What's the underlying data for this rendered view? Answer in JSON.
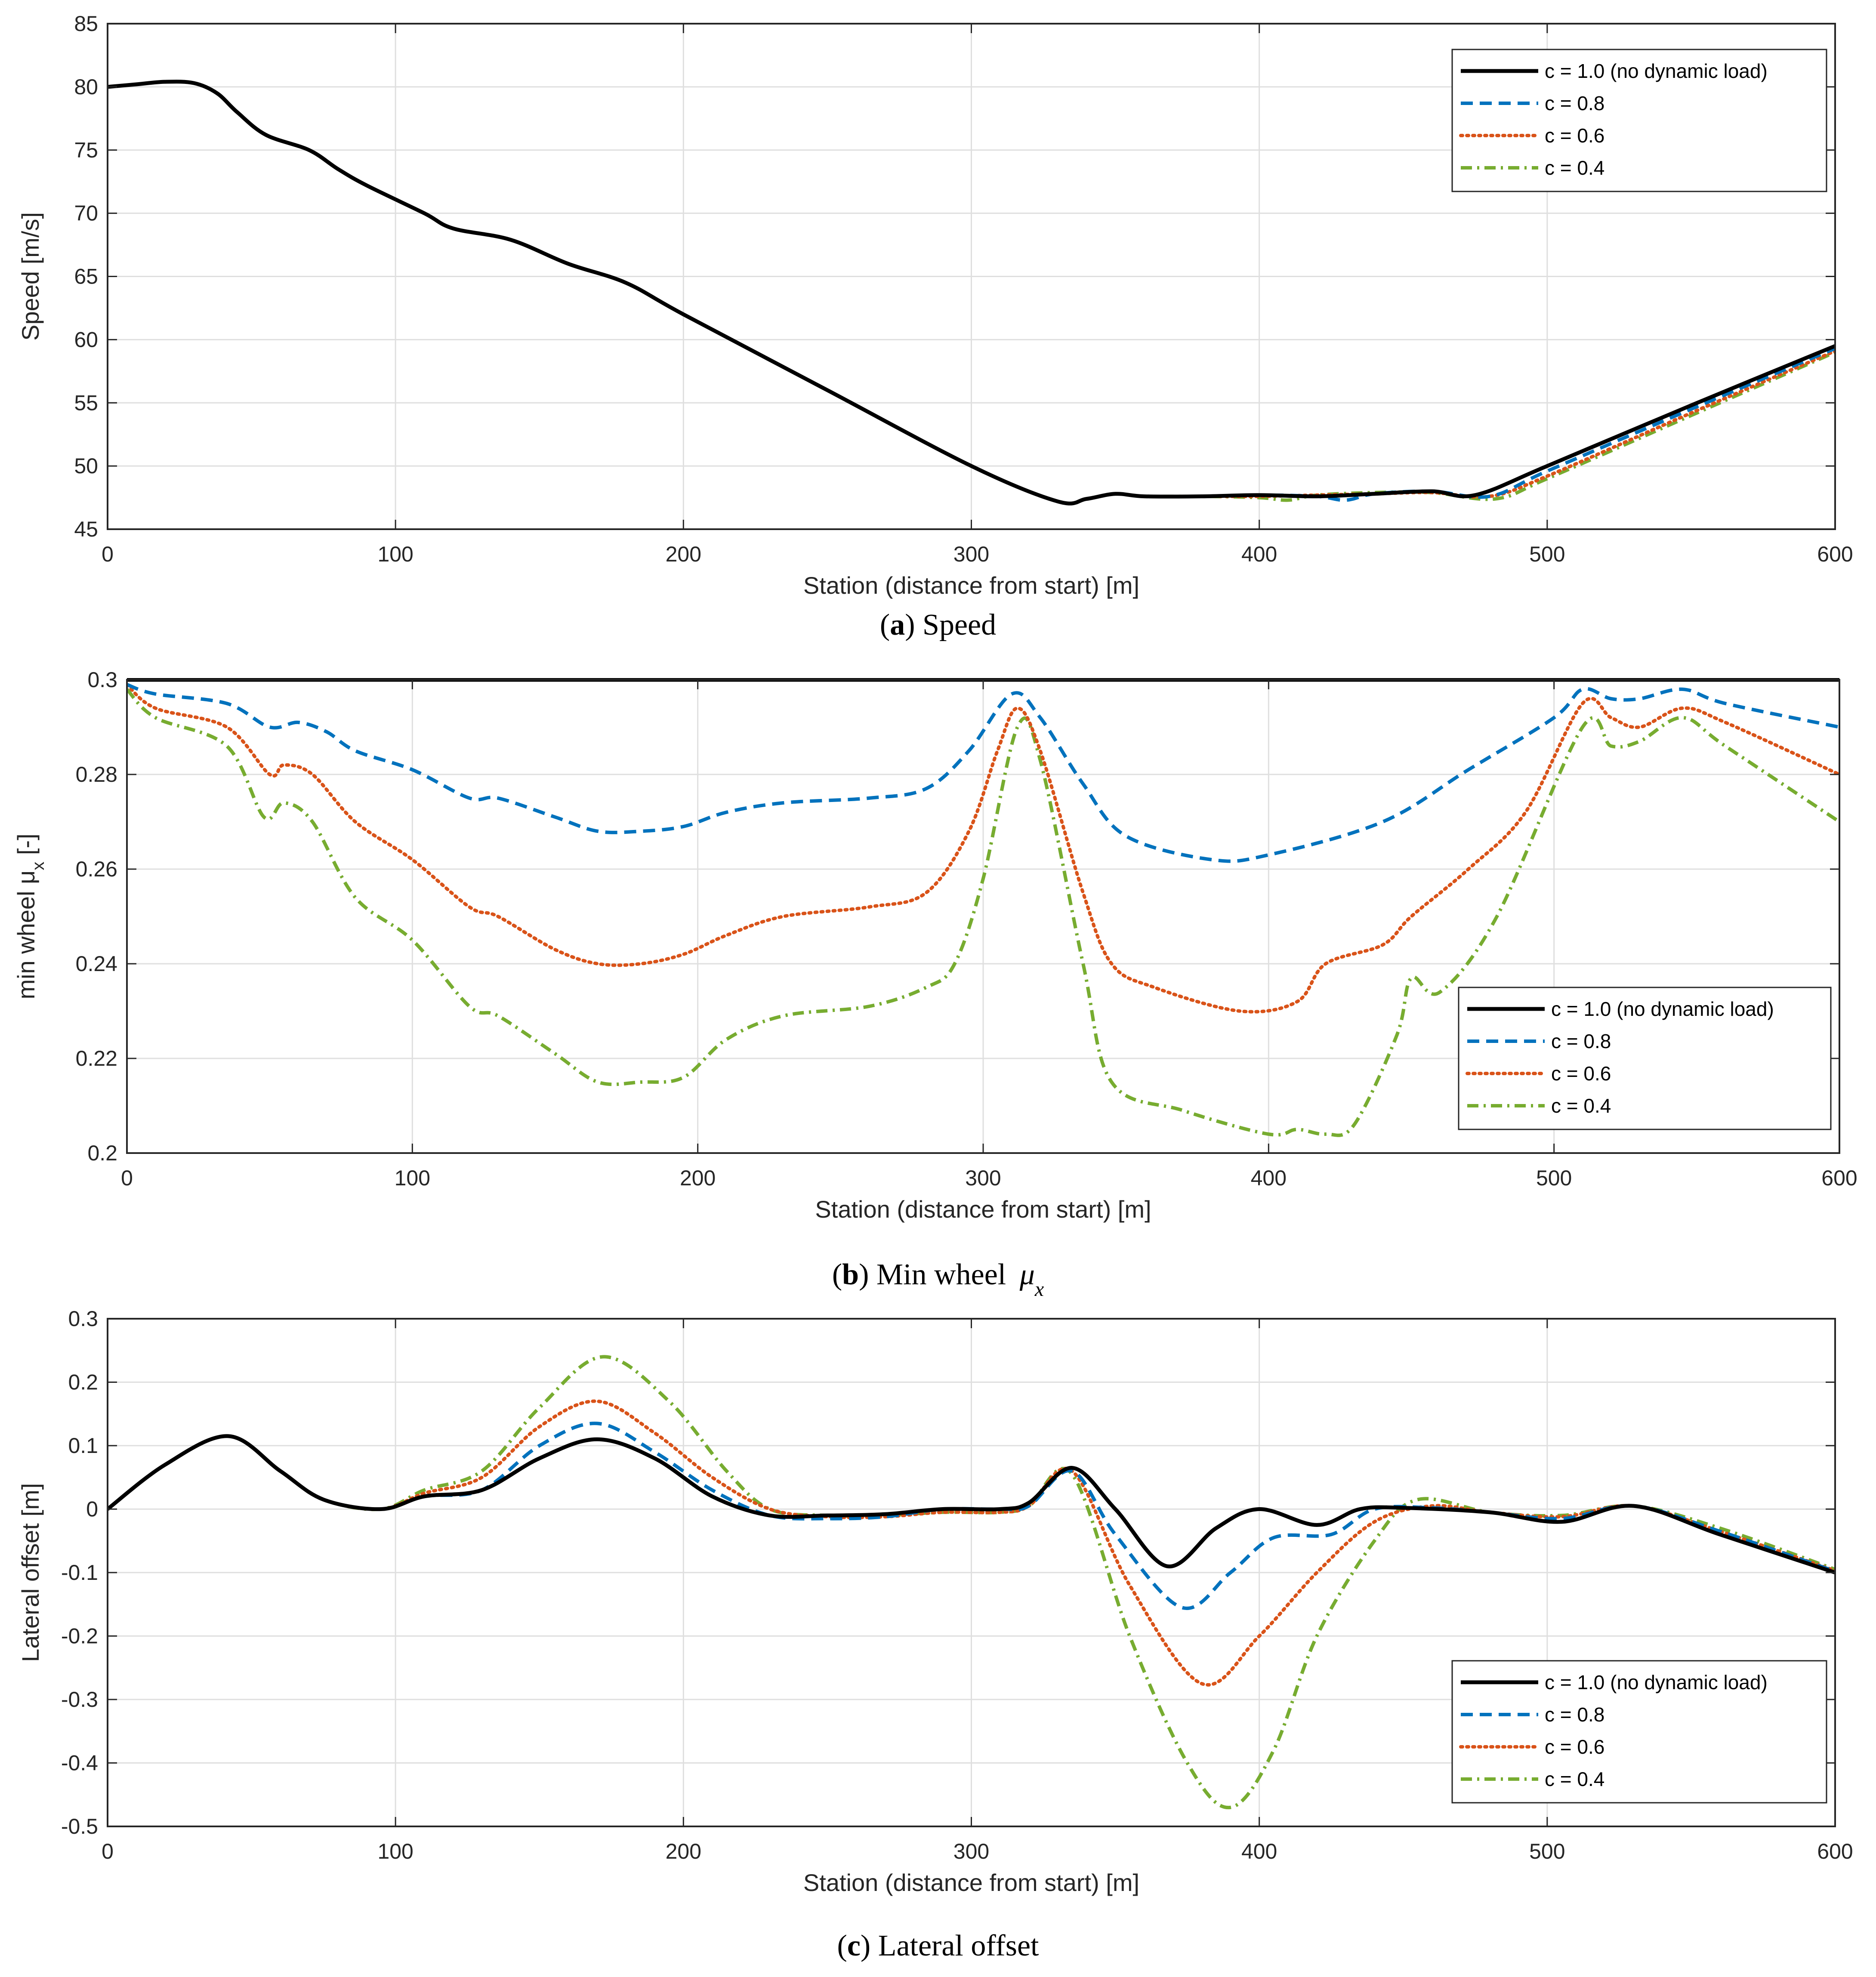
{
  "colors": {
    "c10": "#000000",
    "c08": "#0072BD",
    "c06": "#D95319",
    "c04": "#77AC30",
    "grid": "#DFDFDF",
    "axis": "#262626"
  },
  "legend_labels": [
    "c = 1.0 (no dynamic load)",
    "c = 0.8",
    "c = 0.6",
    "c = 0.4"
  ],
  "chart_data": [
    {
      "type": "line",
      "id": "a",
      "caption_letter": "a",
      "caption_text": " Speed",
      "xlabel": "Station (distance from start) [m]",
      "ylabel": "Speed [m/s]",
      "xlim": [
        0,
        600
      ],
      "ylim": [
        45,
        85
      ],
      "xticks": [
        0,
        100,
        200,
        300,
        400,
        500,
        600
      ],
      "yticks": [
        45,
        50,
        55,
        60,
        65,
        70,
        75,
        80,
        85
      ],
      "ytick_labels": [
        "45",
        "50",
        "55",
        "60",
        "65",
        "70",
        "75",
        "80",
        "85"
      ],
      "grid": true,
      "legend_position": "top-right",
      "series": [
        {
          "name": "c = 1.0 (no dynamic load)",
          "style": "solid",
          "x": [
            0,
            10,
            20,
            30,
            38,
            45,
            55,
            70,
            80,
            90,
            110,
            120,
            140,
            160,
            180,
            200,
            250,
            300,
            330,
            340,
            350,
            360,
            380,
            400,
            420,
            440,
            460,
            475,
            500,
            550,
            600
          ],
          "y": [
            80,
            80.2,
            80.4,
            80.3,
            79.5,
            78,
            76.2,
            75,
            73.5,
            72.2,
            70,
            68.8,
            67.9,
            66,
            64.5,
            62,
            56,
            50,
            47.2,
            47.4,
            47.8,
            47.6,
            47.6,
            47.7,
            47.6,
            47.8,
            48,
            47.7,
            50,
            54.8,
            59.5
          ]
        },
        {
          "name": "c = 0.8",
          "style": "dashed",
          "x": [
            0,
            10,
            20,
            30,
            38,
            45,
            55,
            70,
            80,
            90,
            110,
            120,
            140,
            160,
            180,
            200,
            250,
            300,
            330,
            340,
            350,
            360,
            380,
            400,
            420,
            430,
            440,
            460,
            480,
            500,
            550,
            600
          ],
          "y": [
            80,
            80.2,
            80.4,
            80.3,
            79.5,
            78,
            76.2,
            75,
            73.5,
            72.2,
            70,
            68.8,
            67.9,
            66,
            64.5,
            62,
            56,
            50,
            47.2,
            47.4,
            47.8,
            47.6,
            47.6,
            47.7,
            47.6,
            47.3,
            47.8,
            48,
            47.6,
            49.6,
            54.5,
            59.3
          ]
        },
        {
          "name": "c = 0.6",
          "style": "dotted",
          "x": [
            0,
            10,
            20,
            30,
            38,
            45,
            55,
            70,
            80,
            90,
            110,
            120,
            140,
            160,
            180,
            200,
            250,
            300,
            330,
            340,
            350,
            360,
            380,
            400,
            420,
            440,
            460,
            480,
            500,
            550,
            600
          ],
          "y": [
            80,
            80.2,
            80.4,
            80.3,
            79.5,
            78,
            76.2,
            75,
            73.5,
            72.2,
            70,
            68.8,
            67.9,
            66,
            64.5,
            62,
            56,
            50,
            47.2,
            47.4,
            47.8,
            47.6,
            47.6,
            47.6,
            47.7,
            47.8,
            47.9,
            47.6,
            49.2,
            54.2,
            59.1
          ]
        },
        {
          "name": "c = 0.4",
          "style": "dashdot",
          "x": [
            0,
            10,
            20,
            30,
            38,
            45,
            55,
            70,
            80,
            90,
            110,
            120,
            140,
            160,
            180,
            200,
            250,
            300,
            330,
            340,
            350,
            360,
            380,
            400,
            410,
            420,
            440,
            460,
            482,
            500,
            550,
            600
          ],
          "y": [
            80,
            80.2,
            80.4,
            80.3,
            79.5,
            78,
            76.2,
            75,
            73.5,
            72.2,
            70,
            68.8,
            67.9,
            66,
            64.5,
            62,
            56,
            50,
            47.2,
            47.4,
            47.8,
            47.6,
            47.6,
            47.5,
            47.3,
            47.7,
            47.9,
            47.9,
            47.4,
            49,
            54,
            59
          ]
        }
      ]
    },
    {
      "type": "line",
      "id": "b",
      "caption_letter": "b",
      "caption_text": ") Min wheel ",
      "caption_symbol": "μ",
      "caption_subscript": "x",
      "xlabel": "Station (distance from start) [m]",
      "ylabel": "min wheel μ",
      "ylabel_sub": "x",
      "ylabel_suffix": " [-]",
      "xlim": [
        0,
        600
      ],
      "ylim": [
        0.2,
        0.3
      ],
      "xticks": [
        0,
        100,
        200,
        300,
        400,
        500,
        600
      ],
      "yticks": [
        0.2,
        0.22,
        0.24,
        0.26,
        0.28,
        0.3
      ],
      "ytick_labels": [
        "0.2",
        "0.22",
        "0.24",
        "0.26",
        "0.28",
        "0.3"
      ],
      "grid": true,
      "legend_position": "lower-right",
      "series": [
        {
          "name": "c = 1.0 (no dynamic load)",
          "style": "solid",
          "x": [
            0,
            600
          ],
          "y": [
            0.3,
            0.3
          ]
        },
        {
          "name": "c = 0.8",
          "style": "dashed",
          "x": [
            0,
            10,
            35,
            50,
            60,
            70,
            80,
            100,
            120,
            130,
            150,
            165,
            180,
            195,
            210,
            230,
            260,
            280,
            295,
            310,
            320,
            335,
            350,
            380,
            400,
            440,
            470,
            500,
            510,
            520,
            530,
            545,
            560,
            600
          ],
          "y": [
            0.299,
            0.297,
            0.295,
            0.29,
            0.291,
            0.289,
            0.285,
            0.281,
            0.275,
            0.275,
            0.271,
            0.268,
            0.268,
            0.269,
            0.272,
            0.274,
            0.275,
            0.277,
            0.285,
            0.297,
            0.292,
            0.278,
            0.267,
            0.262,
            0.263,
            0.27,
            0.281,
            0.292,
            0.298,
            0.296,
            0.296,
            0.298,
            0.295,
            0.29
          ]
        },
        {
          "name": "c = 0.6",
          "style": "dotted",
          "x": [
            0,
            10,
            35,
            50,
            55,
            65,
            80,
            100,
            120,
            130,
            150,
            165,
            180,
            195,
            210,
            230,
            260,
            280,
            295,
            305,
            312,
            320,
            335,
            345,
            360,
            390,
            410,
            420,
            440,
            450,
            470,
            490,
            510,
            520,
            530,
            545,
            560,
            600
          ],
          "y": [
            0.299,
            0.294,
            0.29,
            0.28,
            0.282,
            0.28,
            0.27,
            0.262,
            0.252,
            0.25,
            0.243,
            0.24,
            0.24,
            0.242,
            0.246,
            0.25,
            0.252,
            0.255,
            0.268,
            0.285,
            0.294,
            0.285,
            0.255,
            0.24,
            0.235,
            0.23,
            0.232,
            0.24,
            0.244,
            0.25,
            0.26,
            0.272,
            0.295,
            0.292,
            0.29,
            0.294,
            0.291,
            0.28
          ]
        },
        {
          "name": "c = 0.4",
          "style": "dashdot",
          "x": [
            0,
            10,
            35,
            48,
            55,
            65,
            80,
            100,
            120,
            130,
            150,
            165,
            180,
            195,
            210,
            230,
            260,
            280,
            290,
            300,
            312,
            320,
            335,
            345,
            370,
            400,
            410,
            420,
            430,
            445,
            450,
            460,
            480,
            510,
            520,
            530,
            545,
            560,
            600
          ],
          "y": [
            0.298,
            0.292,
            0.286,
            0.271,
            0.274,
            0.27,
            0.254,
            0.245,
            0.231,
            0.229,
            0.221,
            0.215,
            0.215,
            0.216,
            0.224,
            0.229,
            0.231,
            0.235,
            0.24,
            0.258,
            0.29,
            0.283,
            0.24,
            0.215,
            0.209,
            0.204,
            0.205,
            0.204,
            0.206,
            0.225,
            0.237,
            0.234,
            0.25,
            0.29,
            0.286,
            0.287,
            0.292,
            0.286,
            0.27
          ]
        }
      ]
    },
    {
      "type": "line",
      "id": "c",
      "caption_letter": "c",
      "caption_text": ") Lateral offset",
      "xlabel": "Station (distance from start) [m]",
      "ylabel": "Lateral offset [m]",
      "xlim": [
        0,
        600
      ],
      "ylim": [
        -0.5,
        0.3
      ],
      "xticks": [
        0,
        100,
        200,
        300,
        400,
        500,
        600
      ],
      "yticks": [
        -0.5,
        -0.4,
        -0.3,
        -0.2,
        -0.1,
        0,
        0.1,
        0.2,
        0.3
      ],
      "ytick_labels": [
        "-0.5",
        "-0.4",
        "-0.3",
        "-0.2",
        "-0.1",
        "0",
        "0.1",
        "0.2",
        "0.3"
      ],
      "grid": true,
      "legend_position": "lower-right",
      "series": [
        {
          "name": "c = 1.0 (no dynamic load)",
          "style": "solid",
          "x": [
            0,
            20,
            42,
            60,
            75,
            95,
            110,
            130,
            150,
            170,
            190,
            210,
            230,
            250,
            270,
            290,
            310,
            320,
            335,
            350,
            368,
            385,
            400,
            420,
            435,
            450,
            480,
            505,
            530,
            560,
            600
          ],
          "y": [
            0,
            0.07,
            0.115,
            0.06,
            0.015,
            0,
            0.02,
            0.03,
            0.08,
            0.11,
            0.08,
            0.02,
            -0.01,
            -0.01,
            -0.008,
            0,
            0,
            0.01,
            0.065,
            0,
            -0.09,
            -0.03,
            0,
            -0.025,
            0,
            0.002,
            -0.005,
            -0.02,
            0.005,
            -0.04,
            -0.1
          ]
        },
        {
          "name": "c = 0.8",
          "style": "dashed",
          "x": [
            0,
            20,
            42,
            60,
            75,
            95,
            110,
            130,
            150,
            170,
            190,
            210,
            230,
            250,
            270,
            290,
            310,
            320,
            335,
            350,
            373,
            390,
            405,
            425,
            440,
            460,
            480,
            505,
            530,
            560,
            600
          ],
          "y": [
            0,
            0.07,
            0.115,
            0.06,
            0.015,
            0,
            0.02,
            0.03,
            0.1,
            0.135,
            0.09,
            0.03,
            -0.01,
            -0.015,
            -0.012,
            0,
            0,
            0.005,
            0.06,
            -0.04,
            -0.155,
            -0.1,
            -0.045,
            -0.04,
            0,
            0.002,
            -0.005,
            -0.015,
            0.005,
            -0.035,
            -0.098
          ]
        },
        {
          "name": "c = 0.6",
          "style": "dotted",
          "x": [
            0,
            20,
            42,
            60,
            75,
            95,
            110,
            130,
            150,
            170,
            190,
            210,
            230,
            250,
            270,
            290,
            310,
            320,
            335,
            355,
            380,
            400,
            420,
            440,
            460,
            480,
            505,
            530,
            560,
            600
          ],
          "y": [
            0,
            0.07,
            0.115,
            0.06,
            0.015,
            0,
            0.025,
            0.05,
            0.13,
            0.17,
            0.12,
            0.05,
            0,
            -0.012,
            -0.012,
            -0.005,
            -0.005,
            0.005,
            0.06,
            -0.12,
            -0.275,
            -0.2,
            -0.1,
            -0.02,
            0.005,
            -0.005,
            -0.012,
            0.005,
            -0.035,
            -0.097
          ]
        },
        {
          "name": "c = 0.4",
          "style": "dashdot",
          "x": [
            0,
            20,
            42,
            60,
            75,
            95,
            110,
            130,
            150,
            172,
            195,
            215,
            230,
            250,
            270,
            290,
            310,
            320,
            335,
            355,
            375,
            390,
            405,
            420,
            440,
            455,
            480,
            505,
            530,
            560,
            600
          ],
          "y": [
            0,
            0.07,
            0.115,
            0.06,
            0.015,
            0,
            0.03,
            0.06,
            0.16,
            0.24,
            0.17,
            0.06,
            0,
            -0.01,
            -0.01,
            -0.005,
            -0.005,
            0.005,
            0.055,
            -0.2,
            -0.4,
            -0.47,
            -0.38,
            -0.2,
            -0.05,
            0.015,
            -0.005,
            -0.01,
            0.005,
            -0.03,
            -0.095
          ]
        }
      ]
    }
  ]
}
